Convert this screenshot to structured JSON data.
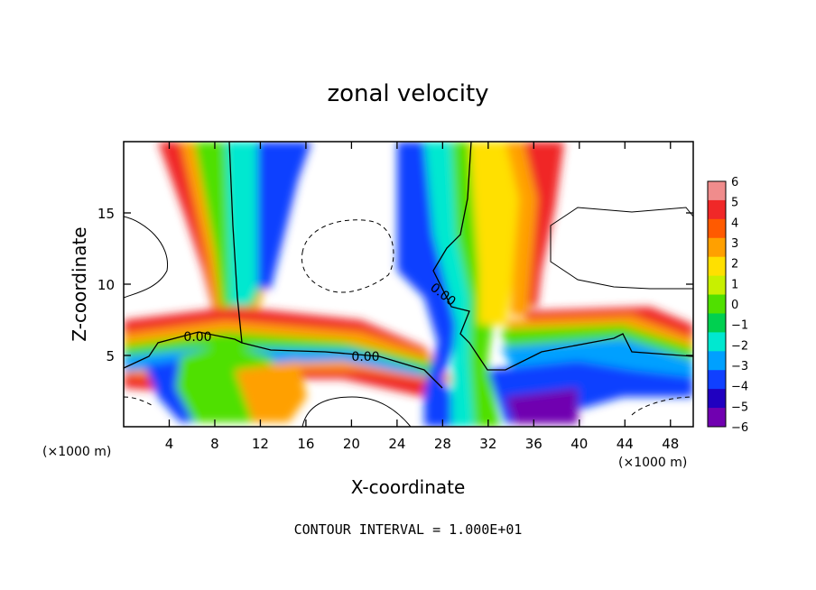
{
  "chart_data": {
    "type": "heatmap",
    "title": "zonal velocity",
    "xlabel": "X-coordinate",
    "ylabel": "Z-coordinate",
    "x_unit_left": "(×1000 m)",
    "x_unit_right": "(×1000 m)",
    "xlim": [
      0,
      50
    ],
    "ylim": [
      0,
      20
    ],
    "x_ticks": [
      4,
      8,
      12,
      16,
      20,
      24,
      28,
      32,
      36,
      40,
      44,
      48
    ],
    "y_ticks": [
      5,
      10,
      15
    ],
    "grid": false,
    "colorbar": {
      "levels": [
        6,
        5,
        4,
        3,
        2,
        1,
        0,
        -1,
        -2,
        -3,
        -4,
        -5,
        -6
      ],
      "colors": [
        "#f08c8c",
        "#f02828",
        "#ff5a00",
        "#ffa000",
        "#ffe000",
        "#c8f000",
        "#50e000",
        "#00d050",
        "#00e8d0",
        "#00a0ff",
        "#1040ff",
        "#2000c0",
        "#7000b0"
      ]
    },
    "contour_labels": [
      "0.00",
      "0.00",
      "0.00"
    ],
    "footer": "CONTOUR INTERVAL = 1.000E+01"
  }
}
